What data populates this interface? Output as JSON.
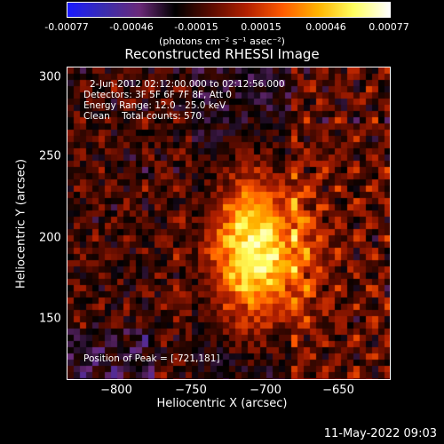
{
  "colorbar": {
    "ticks": [
      "-0.00077",
      "-0.00046",
      "-0.00015",
      "0.00015",
      "0.00046",
      "0.00077"
    ],
    "units_label": "(photons cm⁻² s⁻¹ asec⁻²)"
  },
  "chart_data": {
    "type": "heatmap",
    "title": "Reconstructed RHESSI Image",
    "xlabel": "Heliocentric X (arcsec)",
    "ylabel": "Heliocentric Y (arcsec)",
    "xlim": [
      -830,
      -640
    ],
    "ylim": [
      116,
      304
    ],
    "x_ticks": [
      -800,
      -750,
      -700,
      -650
    ],
    "y_ticks": [
      150,
      200,
      250,
      300
    ],
    "value_range": [
      -0.00077,
      0.00077
    ],
    "colormap": [
      "#1a1aff",
      "#3a2db0",
      "#6b2a7a",
      "#000000",
      "#5a0b00",
      "#b22000",
      "#ff5a00",
      "#ffb400",
      "#ffff60",
      "#ffffff"
    ],
    "peak": [
      -721,
      181
    ]
  },
  "annotations": {
    "time_range": "2-Jun-2012 02:12:00.000 to 02:12:56.000",
    "detectors": "Detectors: 3F 5F 6F 7F 8F, Att 0",
    "energy": "Energy Range: 12.0 - 25.0 keV",
    "clean": "Clean    Total counts: 570.",
    "peak": "Position of Peak = [-721,181]"
  },
  "x_tick_labels": [
    "−800",
    "−750",
    "−700",
    "−650"
  ],
  "y_tick_labels": [
    "300",
    "250",
    "200",
    "150"
  ],
  "timestamp": "11-May-2022 09:03"
}
